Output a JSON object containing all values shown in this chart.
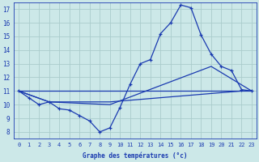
{
  "xlabel": "Graphe des températures (°c)",
  "bg_color": "#cce8e8",
  "grid_color": "#aacccc",
  "line_color": "#1a3ab0",
  "xlim": [
    -0.5,
    23.5
  ],
  "ylim": [
    7.5,
    17.5
  ],
  "yticks": [
    8,
    9,
    10,
    11,
    12,
    13,
    14,
    15,
    16,
    17
  ],
  "xticks": [
    0,
    1,
    2,
    3,
    4,
    5,
    6,
    7,
    8,
    9,
    10,
    11,
    12,
    13,
    14,
    15,
    16,
    17,
    18,
    19,
    20,
    21,
    22,
    23
  ],
  "curve1_x": [
    0,
    1,
    2,
    3,
    4,
    5,
    6,
    7,
    8,
    9,
    10,
    11,
    12,
    13,
    14,
    15,
    16,
    17,
    18,
    19,
    20,
    21,
    22,
    23
  ],
  "curve1_y": [
    11.0,
    10.5,
    10.0,
    10.2,
    9.7,
    9.6,
    9.2,
    8.8,
    8.0,
    8.3,
    9.8,
    11.5,
    13.0,
    13.3,
    15.2,
    16.0,
    17.3,
    17.1,
    15.1,
    13.7,
    12.8,
    12.5,
    11.1,
    11.0
  ],
  "curve2_x": [
    0,
    3,
    9,
    19,
    23
  ],
  "curve2_y": [
    11.0,
    10.2,
    10.0,
    12.8,
    11.0
  ],
  "curve3_x": [
    0,
    3,
    9,
    22,
    23
  ],
  "curve3_y": [
    11.0,
    10.2,
    10.2,
    11.0,
    11.0
  ],
  "curve4_x": [
    0,
    23
  ],
  "curve4_y": [
    11.0,
    11.0
  ]
}
